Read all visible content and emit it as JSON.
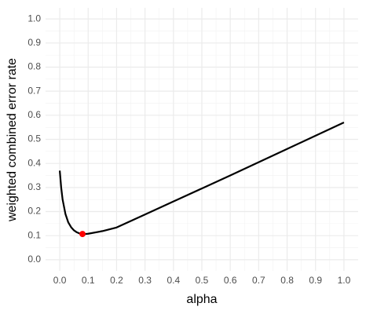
{
  "chart_data": {
    "type": "line",
    "x_label": "alpha",
    "y_label": "weighted combined error rate",
    "x": [
      0,
      0.005,
      0.01,
      0.02,
      0.03,
      0.04,
      0.05,
      0.06,
      0.07,
      0.08,
      0.09,
      0.1,
      0.15,
      0.2,
      0.3,
      0.4,
      0.5,
      0.6,
      0.7,
      0.8,
      0.9,
      1.0
    ],
    "values": [
      0.37,
      0.3,
      0.25,
      0.19,
      0.155,
      0.135,
      0.122,
      0.114,
      0.109,
      0.107,
      0.107,
      0.108,
      0.119,
      0.134,
      0.188,
      0.242,
      0.296,
      0.35,
      0.405,
      0.46,
      0.515,
      0.57
    ],
    "color": "#000000",
    "minimum": {
      "x": 0.08,
      "y": 0.107,
      "color": "#ff0000"
    },
    "xlim": [
      -0.05,
      1.05
    ],
    "ylim": [
      -0.046,
      1.046
    ],
    "xticks": [
      {
        "value": 0,
        "label": "0.0"
      },
      0.1,
      0.2,
      0.3,
      0.4,
      0.5,
      0.6,
      0.7,
      0.8,
      0.9,
      {
        "value": 1,
        "label": "1.0"
      }
    ],
    "yticks": [
      {
        "value": 0,
        "label": "0.0"
      },
      0.1,
      0.2,
      0.3,
      0.4,
      0.5,
      0.6,
      0.7,
      0.8,
      0.9,
      {
        "value": 1,
        "label": "1.0"
      }
    ],
    "grid": true
  }
}
